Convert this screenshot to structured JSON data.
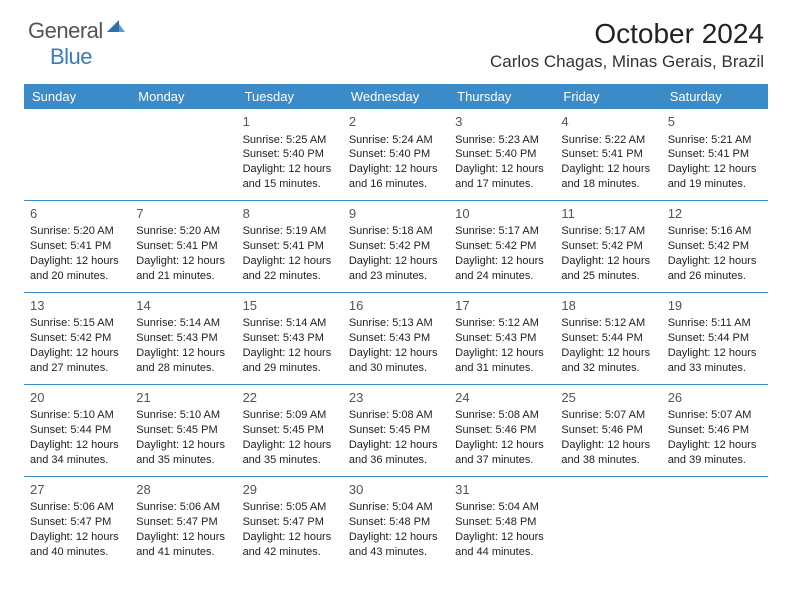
{
  "logo": {
    "text_gray": "General",
    "text_blue": "Blue"
  },
  "header": {
    "title": "October 2024",
    "location": "Carlos Chagas, Minas Gerais, Brazil"
  },
  "colors": {
    "header_bg": "#3b8bc9",
    "header_text": "#ffffff",
    "row_divider": "#3b8bc9",
    "body_text": "#222222",
    "logo_gray": "#555555",
    "logo_blue": "#3b7bbf"
  },
  "weekdays": [
    "Sunday",
    "Monday",
    "Tuesday",
    "Wednesday",
    "Thursday",
    "Friday",
    "Saturday"
  ],
  "weeks": [
    [
      null,
      null,
      {
        "n": "1",
        "sunrise": "Sunrise: 5:25 AM",
        "sunset": "Sunset: 5:40 PM",
        "day1": "Daylight: 12 hours",
        "day2": "and 15 minutes."
      },
      {
        "n": "2",
        "sunrise": "Sunrise: 5:24 AM",
        "sunset": "Sunset: 5:40 PM",
        "day1": "Daylight: 12 hours",
        "day2": "and 16 minutes."
      },
      {
        "n": "3",
        "sunrise": "Sunrise: 5:23 AM",
        "sunset": "Sunset: 5:40 PM",
        "day1": "Daylight: 12 hours",
        "day2": "and 17 minutes."
      },
      {
        "n": "4",
        "sunrise": "Sunrise: 5:22 AM",
        "sunset": "Sunset: 5:41 PM",
        "day1": "Daylight: 12 hours",
        "day2": "and 18 minutes."
      },
      {
        "n": "5",
        "sunrise": "Sunrise: 5:21 AM",
        "sunset": "Sunset: 5:41 PM",
        "day1": "Daylight: 12 hours",
        "day2": "and 19 minutes."
      }
    ],
    [
      {
        "n": "6",
        "sunrise": "Sunrise: 5:20 AM",
        "sunset": "Sunset: 5:41 PM",
        "day1": "Daylight: 12 hours",
        "day2": "and 20 minutes."
      },
      {
        "n": "7",
        "sunrise": "Sunrise: 5:20 AM",
        "sunset": "Sunset: 5:41 PM",
        "day1": "Daylight: 12 hours",
        "day2": "and 21 minutes."
      },
      {
        "n": "8",
        "sunrise": "Sunrise: 5:19 AM",
        "sunset": "Sunset: 5:41 PM",
        "day1": "Daylight: 12 hours",
        "day2": "and 22 minutes."
      },
      {
        "n": "9",
        "sunrise": "Sunrise: 5:18 AM",
        "sunset": "Sunset: 5:42 PM",
        "day1": "Daylight: 12 hours",
        "day2": "and 23 minutes."
      },
      {
        "n": "10",
        "sunrise": "Sunrise: 5:17 AM",
        "sunset": "Sunset: 5:42 PM",
        "day1": "Daylight: 12 hours",
        "day2": "and 24 minutes."
      },
      {
        "n": "11",
        "sunrise": "Sunrise: 5:17 AM",
        "sunset": "Sunset: 5:42 PM",
        "day1": "Daylight: 12 hours",
        "day2": "and 25 minutes."
      },
      {
        "n": "12",
        "sunrise": "Sunrise: 5:16 AM",
        "sunset": "Sunset: 5:42 PM",
        "day1": "Daylight: 12 hours",
        "day2": "and 26 minutes."
      }
    ],
    [
      {
        "n": "13",
        "sunrise": "Sunrise: 5:15 AM",
        "sunset": "Sunset: 5:42 PM",
        "day1": "Daylight: 12 hours",
        "day2": "and 27 minutes."
      },
      {
        "n": "14",
        "sunrise": "Sunrise: 5:14 AM",
        "sunset": "Sunset: 5:43 PM",
        "day1": "Daylight: 12 hours",
        "day2": "and 28 minutes."
      },
      {
        "n": "15",
        "sunrise": "Sunrise: 5:14 AM",
        "sunset": "Sunset: 5:43 PM",
        "day1": "Daylight: 12 hours",
        "day2": "and 29 minutes."
      },
      {
        "n": "16",
        "sunrise": "Sunrise: 5:13 AM",
        "sunset": "Sunset: 5:43 PM",
        "day1": "Daylight: 12 hours",
        "day2": "and 30 minutes."
      },
      {
        "n": "17",
        "sunrise": "Sunrise: 5:12 AM",
        "sunset": "Sunset: 5:43 PM",
        "day1": "Daylight: 12 hours",
        "day2": "and 31 minutes."
      },
      {
        "n": "18",
        "sunrise": "Sunrise: 5:12 AM",
        "sunset": "Sunset: 5:44 PM",
        "day1": "Daylight: 12 hours",
        "day2": "and 32 minutes."
      },
      {
        "n": "19",
        "sunrise": "Sunrise: 5:11 AM",
        "sunset": "Sunset: 5:44 PM",
        "day1": "Daylight: 12 hours",
        "day2": "and 33 minutes."
      }
    ],
    [
      {
        "n": "20",
        "sunrise": "Sunrise: 5:10 AM",
        "sunset": "Sunset: 5:44 PM",
        "day1": "Daylight: 12 hours",
        "day2": "and 34 minutes."
      },
      {
        "n": "21",
        "sunrise": "Sunrise: 5:10 AM",
        "sunset": "Sunset: 5:45 PM",
        "day1": "Daylight: 12 hours",
        "day2": "and 35 minutes."
      },
      {
        "n": "22",
        "sunrise": "Sunrise: 5:09 AM",
        "sunset": "Sunset: 5:45 PM",
        "day1": "Daylight: 12 hours",
        "day2": "and 35 minutes."
      },
      {
        "n": "23",
        "sunrise": "Sunrise: 5:08 AM",
        "sunset": "Sunset: 5:45 PM",
        "day1": "Daylight: 12 hours",
        "day2": "and 36 minutes."
      },
      {
        "n": "24",
        "sunrise": "Sunrise: 5:08 AM",
        "sunset": "Sunset: 5:46 PM",
        "day1": "Daylight: 12 hours",
        "day2": "and 37 minutes."
      },
      {
        "n": "25",
        "sunrise": "Sunrise: 5:07 AM",
        "sunset": "Sunset: 5:46 PM",
        "day1": "Daylight: 12 hours",
        "day2": "and 38 minutes."
      },
      {
        "n": "26",
        "sunrise": "Sunrise: 5:07 AM",
        "sunset": "Sunset: 5:46 PM",
        "day1": "Daylight: 12 hours",
        "day2": "and 39 minutes."
      }
    ],
    [
      {
        "n": "27",
        "sunrise": "Sunrise: 5:06 AM",
        "sunset": "Sunset: 5:47 PM",
        "day1": "Daylight: 12 hours",
        "day2": "and 40 minutes."
      },
      {
        "n": "28",
        "sunrise": "Sunrise: 5:06 AM",
        "sunset": "Sunset: 5:47 PM",
        "day1": "Daylight: 12 hours",
        "day2": "and 41 minutes."
      },
      {
        "n": "29",
        "sunrise": "Sunrise: 5:05 AM",
        "sunset": "Sunset: 5:47 PM",
        "day1": "Daylight: 12 hours",
        "day2": "and 42 minutes."
      },
      {
        "n": "30",
        "sunrise": "Sunrise: 5:04 AM",
        "sunset": "Sunset: 5:48 PM",
        "day1": "Daylight: 12 hours",
        "day2": "and 43 minutes."
      },
      {
        "n": "31",
        "sunrise": "Sunrise: 5:04 AM",
        "sunset": "Sunset: 5:48 PM",
        "day1": "Daylight: 12 hours",
        "day2": "and 44 minutes."
      },
      null,
      null
    ]
  ]
}
